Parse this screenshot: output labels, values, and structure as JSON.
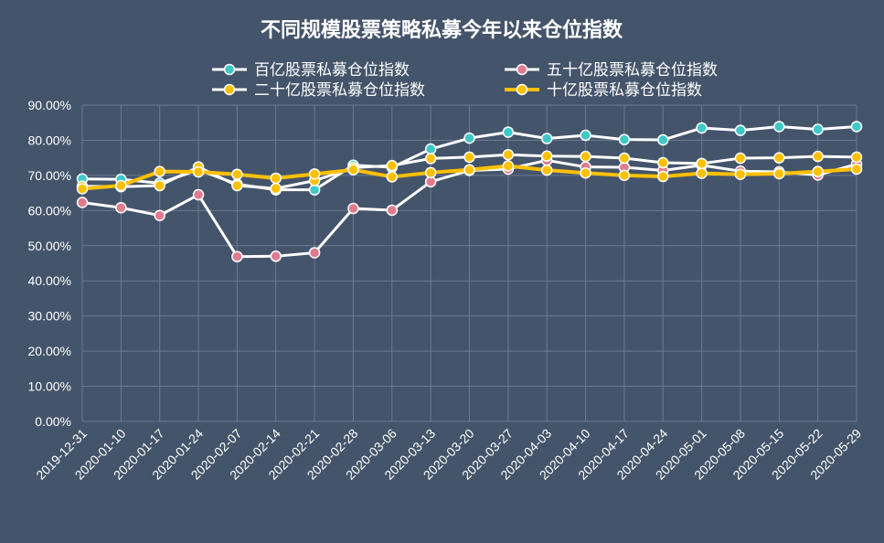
{
  "colors": {
    "background": "#44546a",
    "grid": "#6b7a90",
    "text": "#ffffff",
    "line_white": "#ffffff",
    "line_gold": "#ffc000",
    "marker_cyan": "#3ec8c8",
    "marker_pink": "#e07a8e",
    "marker_gold": "#ffc000"
  },
  "chart_data": {
    "type": "line",
    "title": "不同规模股票策略私募今年以来仓位指数",
    "xlabel": "",
    "ylabel": "",
    "ylim": [
      0,
      90
    ],
    "y_ticks": [
      "0.00%",
      "10.00%",
      "20.00%",
      "30.00%",
      "40.00%",
      "50.00%",
      "60.00%",
      "70.00%",
      "80.00%",
      "90.00%"
    ],
    "grid": true,
    "legend_position": "top",
    "categories": [
      "2019-12-31",
      "2020-01-10",
      "2020-01-17",
      "2020-01-24",
      "2020-02-07",
      "2020-02-14",
      "2020-02-21",
      "2020-02-28",
      "2020-03-06",
      "2020-03-13",
      "2020-03-20",
      "2020-03-27",
      "2020-04-03",
      "2020-04-10",
      "2020-04-17",
      "2020-04-24",
      "2020-05-01",
      "2020-05-08",
      "2020-05-15",
      "2020-05-22",
      "2020-05-29"
    ],
    "series": [
      {
        "name": "百亿股票私募仓位指数",
        "line_color": "#ffffff",
        "marker_color": "#3ec8c8",
        "line_width": 3,
        "values": [
          69.0,
          68.9,
          67.8,
          71.6,
          67.5,
          65.9,
          65.9,
          72.9,
          72.3,
          77.5,
          80.6,
          82.3,
          80.5,
          81.4,
          80.2,
          80.1,
          83.5,
          82.8,
          83.9,
          83.1,
          83.9
        ]
      },
      {
        "name": "五十亿股票私募仓位指数",
        "line_color": "#ffffff",
        "marker_color": "#e07a8e",
        "line_width": 3,
        "values": [
          62.3,
          60.8,
          58.6,
          64.5,
          46.9,
          47.0,
          48.0,
          60.6,
          60.1,
          68.2,
          71.4,
          71.8,
          74.3,
          72.4,
          72.3,
          71.4,
          72.9,
          71.2,
          71.0,
          70.1,
          73.2
        ]
      },
      {
        "name": "二十亿股票私募仓位指数",
        "line_color": "#ffffff",
        "marker_color": "#ffc000",
        "line_width": 3,
        "values": [
          66.9,
          66.8,
          67.1,
          72.4,
          67.1,
          66.3,
          68.5,
          72.2,
          72.8,
          74.8,
          75.2,
          75.9,
          75.5,
          75.4,
          74.9,
          73.6,
          73.4,
          74.9,
          75.0,
          75.4,
          75.2
        ]
      },
      {
        "name": "十亿股票私募仓位指数",
        "line_color": "#ffc000",
        "marker_color": "#ffc000",
        "line_width": 4,
        "values": [
          66.2,
          67.1,
          71.1,
          71.0,
          70.3,
          69.2,
          70.4,
          71.6,
          69.6,
          70.8,
          71.6,
          72.7,
          71.5,
          70.7,
          70.0,
          69.7,
          70.6,
          70.3,
          70.5,
          71.1,
          71.8
        ]
      }
    ]
  }
}
